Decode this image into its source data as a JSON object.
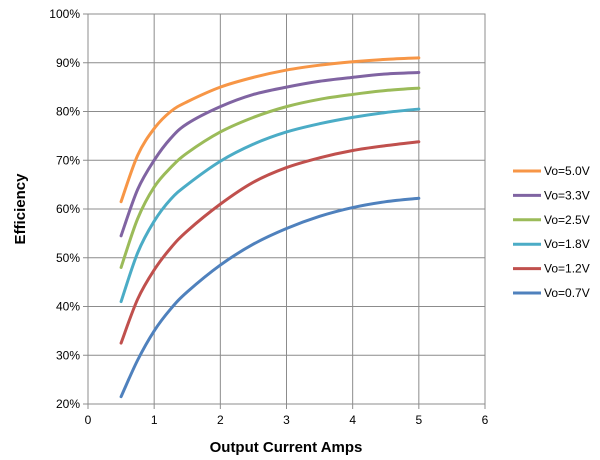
{
  "chart_data": {
    "type": "line",
    "title": "",
    "xlabel": "Output Current Amps",
    "ylabel": "Efficiency",
    "xlim": [
      0,
      6
    ],
    "ylim": [
      20,
      100
    ],
    "x_ticks": [
      0,
      1,
      2,
      3,
      4,
      5,
      6
    ],
    "x_tick_labels": [
      "0",
      "1",
      "2",
      "3",
      "4",
      "5",
      "6"
    ],
    "y_ticks": [
      20,
      30,
      40,
      50,
      60,
      70,
      80,
      90,
      100
    ],
    "y_tick_labels": [
      "20%",
      "30%",
      "40%",
      "50%",
      "60%",
      "70%",
      "80%",
      "90%",
      "100%"
    ],
    "grid": true,
    "legend_position": "right",
    "x": [
      0.5,
      0.75,
      1.0,
      1.25,
      1.5,
      2.0,
      2.5,
      3.0,
      3.5,
      4.0,
      4.5,
      5.0
    ],
    "series": [
      {
        "name": "Vo=5.0V",
        "color": "#F79646",
        "values": [
          61.5,
          71.0,
          76.5,
          80.0,
          82.0,
          85.0,
          87.0,
          88.5,
          89.5,
          90.2,
          90.7,
          91.0
        ]
      },
      {
        "name": "Vo=3.3V",
        "color": "#8064A2",
        "values": [
          54.5,
          64.0,
          70.0,
          74.5,
          77.5,
          81.0,
          83.5,
          85.0,
          86.2,
          87.0,
          87.7,
          88.0
        ]
      },
      {
        "name": "Vo=2.5V",
        "color": "#9BBB59",
        "values": [
          48.0,
          58.0,
          64.5,
          68.5,
          71.5,
          75.8,
          78.8,
          81.0,
          82.5,
          83.5,
          84.3,
          84.8
        ]
      },
      {
        "name": "Vo=1.8V",
        "color": "#4BACC6",
        "values": [
          41.0,
          51.0,
          57.5,
          62.0,
          65.0,
          69.8,
          73.3,
          75.8,
          77.5,
          78.8,
          79.8,
          80.5
        ]
      },
      {
        "name": "Vo=1.2V",
        "color": "#C0504D",
        "values": [
          32.5,
          41.5,
          47.5,
          52.0,
          55.5,
          61.0,
          65.5,
          68.5,
          70.5,
          72.0,
          73.0,
          73.8
        ]
      },
      {
        "name": "Vo=0.7V",
        "color": "#4F81BD",
        "values": [
          21.5,
          29.0,
          35.0,
          39.5,
          43.0,
          48.5,
          52.8,
          56.0,
          58.5,
          60.3,
          61.5,
          62.2
        ]
      }
    ]
  }
}
